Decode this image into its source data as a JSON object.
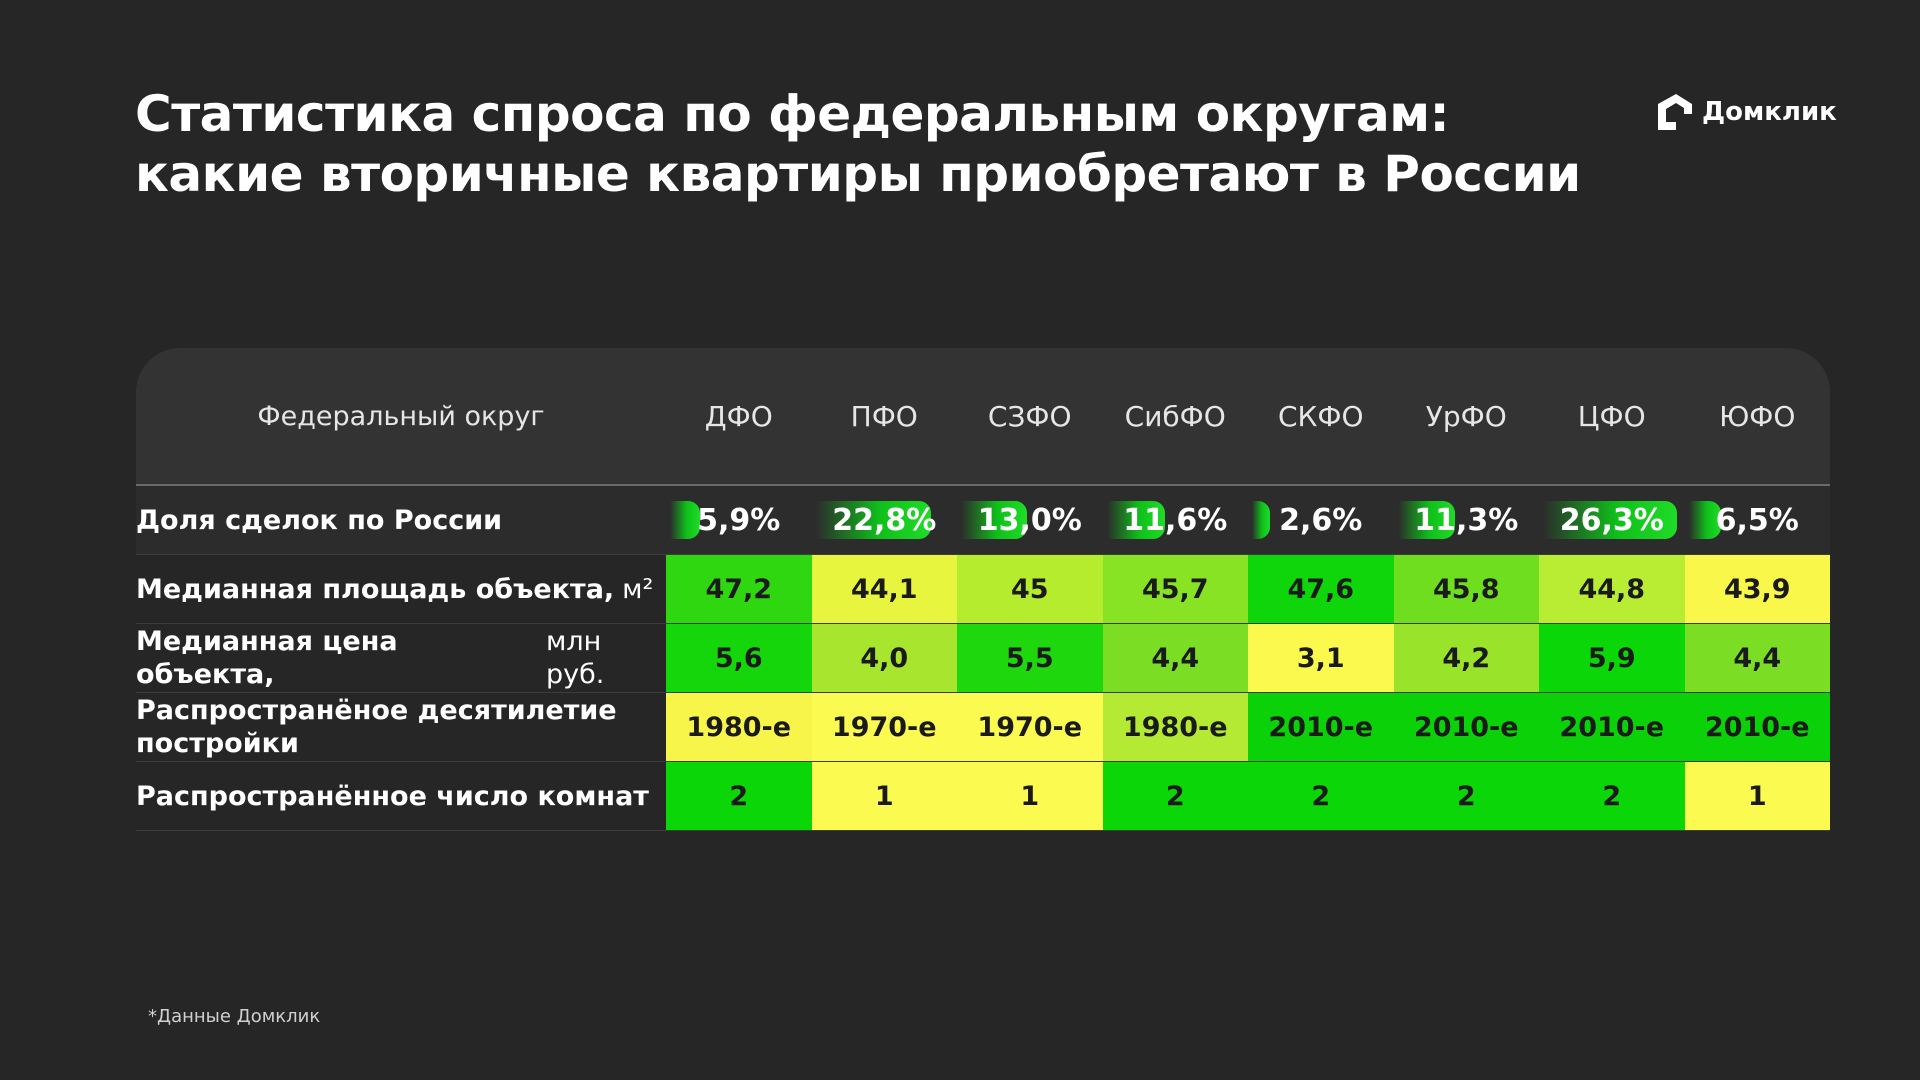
{
  "title_line1": "Статистика спроса по федеральным округам:",
  "title_line2": "какие вторичные квартиры приобретают в России",
  "logo_text": "Домклик",
  "footnote": "*Данные Домклик",
  "chart_data": {
    "type": "table",
    "header_label": "Федеральный округ",
    "columns": [
      "ДФО",
      "ПФО",
      "СЗФО",
      "СибФО",
      "СКФО",
      "УрФО",
      "ЦФО",
      "ЮФО"
    ],
    "rows": [
      {
        "label": "Доля сделок по России",
        "unit": "",
        "display": [
          "5,9%",
          "22,8%",
          "13,0%",
          "11,6%",
          "2,6%",
          "11,3%",
          "26,3%",
          "6,5%"
        ],
        "values": [
          5.9,
          22.8,
          13.0,
          11.6,
          2.6,
          11.3,
          26.3,
          6.5
        ]
      },
      {
        "label": "Медианная площадь объекта,",
        "unit": "м²",
        "display": [
          "47,2",
          "44,1",
          "45",
          "45,7",
          "47,6",
          "45,8",
          "44,8",
          "43,9"
        ],
        "colors": [
          "#2ed70f",
          "#e8f53e",
          "#b6ec2e",
          "#88e324",
          "#0fd60a",
          "#6fde1e",
          "#b9ed33",
          "#f8f74a"
        ]
      },
      {
        "label": "Медианная цена объекта,",
        "unit": "млн руб.",
        "display": [
          "5,6",
          "4,0",
          "5,5",
          "4,4",
          "3,1",
          "4,2",
          "5,9",
          "4,4"
        ],
        "colors": [
          "#15d60a",
          "#a8e52e",
          "#1ed70d",
          "#7bde24",
          "#fbf94d",
          "#99e32a",
          "#0bd608",
          "#7bde24"
        ]
      },
      {
        "label": "Распространёное десятилетие постройки",
        "unit": "",
        "display": [
          "1980-е",
          "1970-е",
          "1970-е",
          "1980-е",
          "2010-е",
          "2010-е",
          "2010-е",
          "2010-е"
        ],
        "colors": [
          "#f8f54a",
          "#fbfa50",
          "#fbfa50",
          "#b4ea34",
          "#0bd208",
          "#0bd208",
          "#0bd208",
          "#0bd208"
        ]
      },
      {
        "label": "Распространённое число комнат",
        "unit": "",
        "display": [
          "2",
          "1",
          "1",
          "2",
          "2",
          "2",
          "2",
          "1"
        ],
        "colors": [
          "#0bd608",
          "#fbfa50",
          "#fbfa50",
          "#0bd608",
          "#0bd608",
          "#0bd608",
          "#0bd608",
          "#fbfa50"
        ]
      }
    ]
  }
}
